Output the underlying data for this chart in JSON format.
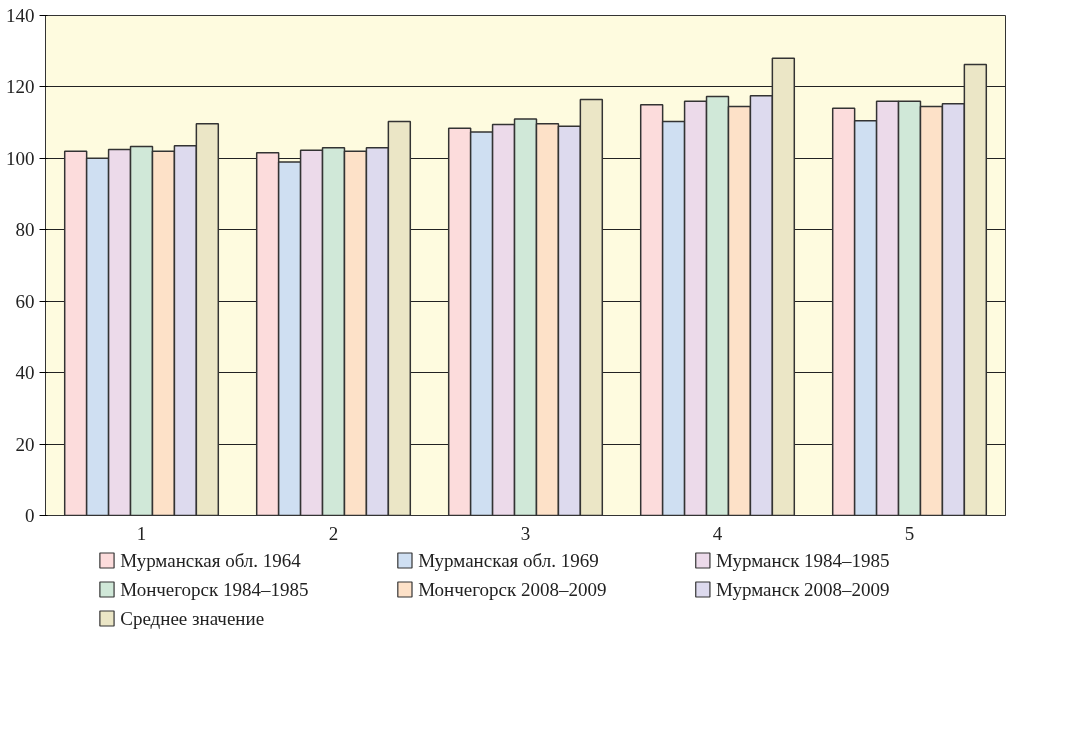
{
  "chart_data": {
    "type": "bar",
    "categories": [
      "1",
      "2",
      "3",
      "4",
      "5"
    ],
    "series": [
      {
        "name": "Мурманская обл. 1964",
        "color": "#fcdcdc",
        "values": [
          102,
          101.6,
          108.4,
          115,
          114
        ]
      },
      {
        "name": "Мурманская обл. 1969",
        "color": "#cfdff2",
        "values": [
          100,
          99,
          107.4,
          110.3,
          110.5
        ]
      },
      {
        "name": "Мурманск 1984–1985",
        "color": "#ecdaea",
        "values": [
          102.5,
          102.3,
          109.5,
          116,
          116
        ]
      },
      {
        "name": "Мончегорск 1984–1985",
        "color": "#d0e8d8",
        "values": [
          103.3,
          103,
          111,
          117.3,
          116
        ]
      },
      {
        "name": "Мончегорск 2008–2009",
        "color": "#fde1c8",
        "values": [
          102,
          102,
          109.7,
          114.5,
          114.5
        ]
      },
      {
        "name": "Мурманск 2008–2009",
        "color": "#dddaee",
        "values": [
          103.5,
          103,
          109,
          117.5,
          115.3
        ]
      },
      {
        "name": "Среднее значение",
        "color": "#ebe6c6",
        "values": [
          109.7,
          110.3,
          116.5,
          128,
          126.3
        ]
      }
    ],
    "ylim": [
      0,
      140
    ],
    "yticks": [
      0,
      20,
      40,
      60,
      80,
      100,
      120,
      140
    ],
    "grid": "y",
    "legend": "bottom"
  }
}
